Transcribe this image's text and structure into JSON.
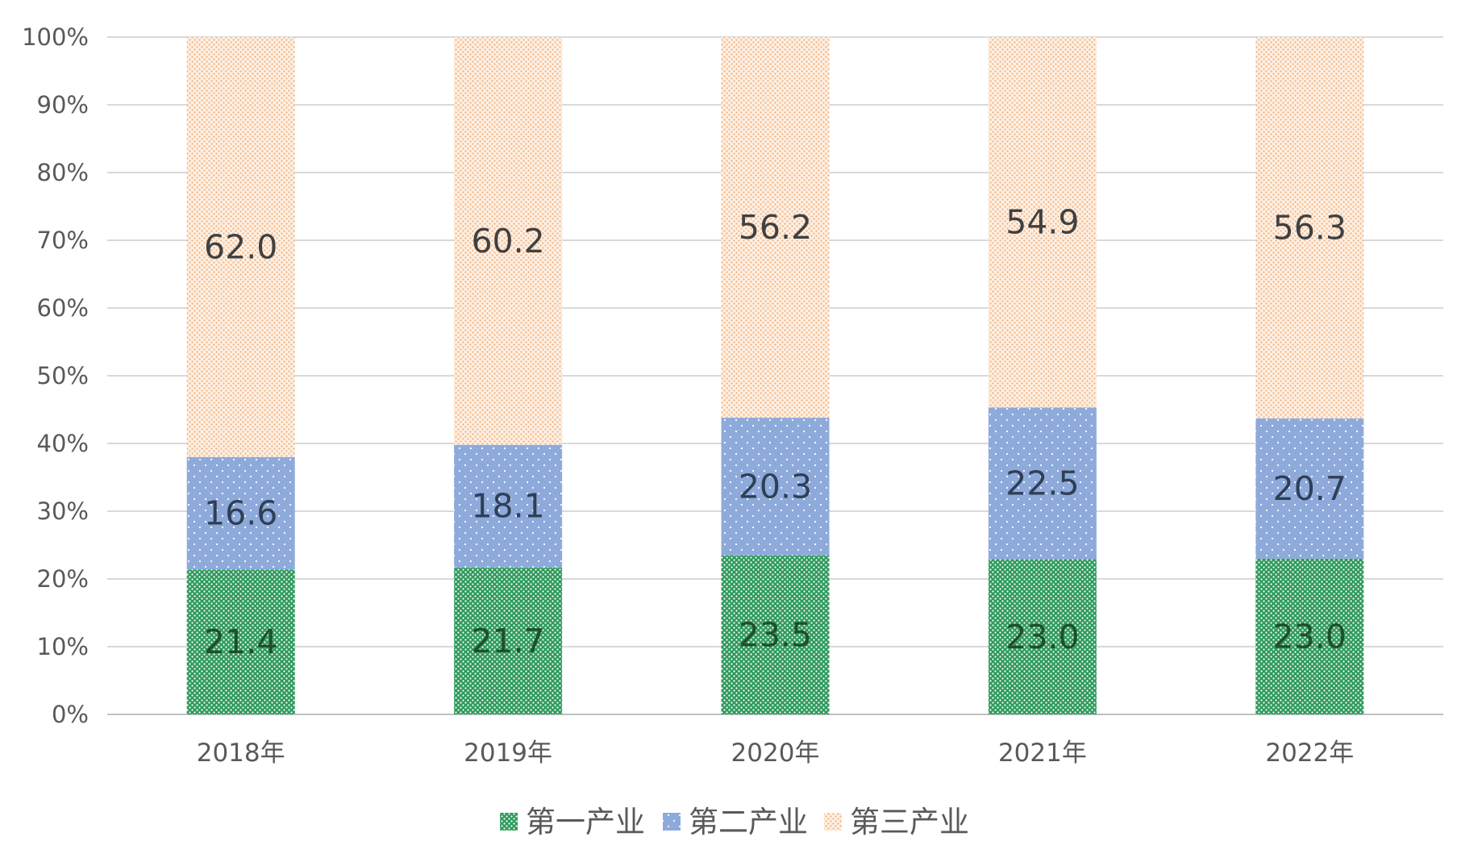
{
  "chart_data": {
    "type": "bar",
    "stacked": true,
    "percent_stacked": true,
    "categories": [
      "2018年",
      "2019年",
      "2020年",
      "2021年",
      "2022年"
    ],
    "series": [
      {
        "name": "第一产业",
        "values": [
          21.4,
          21.7,
          23.5,
          23.0,
          23.0
        ],
        "color": "#2e9a5c",
        "pattern": "dense-dots"
      },
      {
        "name": "第二产业",
        "values": [
          16.6,
          18.1,
          20.3,
          22.5,
          20.7
        ],
        "color": "#8eaadb",
        "pattern": "sparse-dots"
      },
      {
        "name": "第三产业",
        "values": [
          62.0,
          60.2,
          56.2,
          54.9,
          56.3
        ],
        "color": "#f4b183",
        "pattern": "light-dots"
      }
    ],
    "data_labels": [
      [
        "21.4",
        "21.7",
        "23.5",
        "23.0",
        "23.0"
      ],
      [
        "16.6",
        "18.1",
        "20.3",
        "22.5",
        "20.7"
      ],
      [
        "62.0",
        "60.2",
        "56.2",
        "54.9",
        "56.3"
      ]
    ],
    "y_ticks": [
      "0%",
      "10%",
      "20%",
      "30%",
      "40%",
      "50%",
      "60%",
      "70%",
      "80%",
      "90%",
      "100%"
    ],
    "ylim": [
      0,
      100
    ],
    "grid": true,
    "legend_position": "bottom"
  }
}
